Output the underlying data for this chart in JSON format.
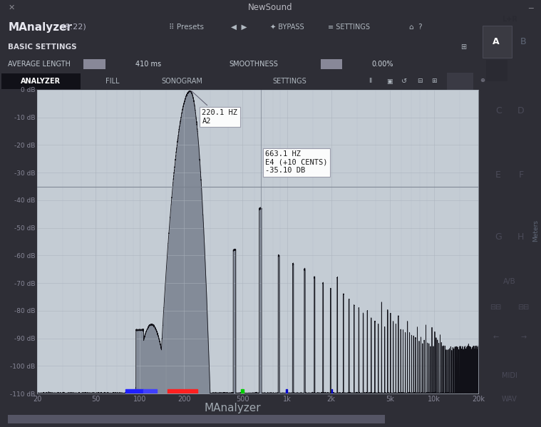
{
  "title": "NewSound",
  "plugin_name": "MAnalyzer",
  "plugin_version": "(9.22)",
  "footer": "MAnalyzer",
  "bg_outer": "#2e2e36",
  "bg_title": "#1e1e22",
  "bg_header": "#3c3c46",
  "bg_settings": "#3a3a44",
  "bg_avg": "#444450",
  "bg_toolbar": "#2e2e36",
  "bg_plot": "#c4ccd4",
  "bg_right": "#9098a0",
  "grid_color": "#aab2bc",
  "plot_fill_color": "#7a8290",
  "plot_line_color": "#111118",
  "freq_min": 20,
  "freq_max": 20000,
  "db_min": -110,
  "db_max": 0,
  "yticks": [
    0,
    -10,
    -20,
    -30,
    -40,
    -50,
    -60,
    -70,
    -80,
    -90,
    -100,
    -110
  ],
  "xtick_labels": [
    "20",
    "50",
    "100",
    "200",
    "500",
    "1k",
    "2k",
    "5k",
    "10k",
    "20k"
  ],
  "xtick_freqs": [
    20,
    50,
    100,
    200,
    500,
    1000,
    2000,
    5000,
    10000,
    20000
  ],
  "minor_freqs": [
    30,
    40,
    60,
    70,
    80,
    90,
    150,
    300,
    400,
    600,
    700,
    800,
    900,
    1500,
    3000,
    4000,
    6000,
    7000,
    8000,
    9000,
    15000
  ],
  "cursor_line_db": -35.1,
  "cursor_line_color": "#7a8290",
  "annotation1_text": "220.1 HZ\nA2",
  "annotation2_text": "663.1 HZ\nE4 (+10 CENTS)\n-35.10 DB",
  "tick_label_color": "#888898",
  "label_size": 7,
  "band_colors": [
    {
      "color": "#2020ff",
      "f0": 80,
      "f1": 105
    },
    {
      "color": "#4040ff",
      "f0": 105,
      "f1": 130
    },
    {
      "color": "#ff2020",
      "f0": 155,
      "f1": 185
    },
    {
      "color": "#ff2020",
      "f0": 185,
      "f1": 215
    },
    {
      "color": "#ff2020",
      "f0": 215,
      "f1": 245
    },
    {
      "color": "#00cc00",
      "f0": 485,
      "f1": 510
    },
    {
      "color": "#0000cc",
      "f0": 980,
      "f1": 1010
    },
    {
      "color": "#0000cc",
      "f0": 2000,
      "f1": 2020
    }
  ]
}
